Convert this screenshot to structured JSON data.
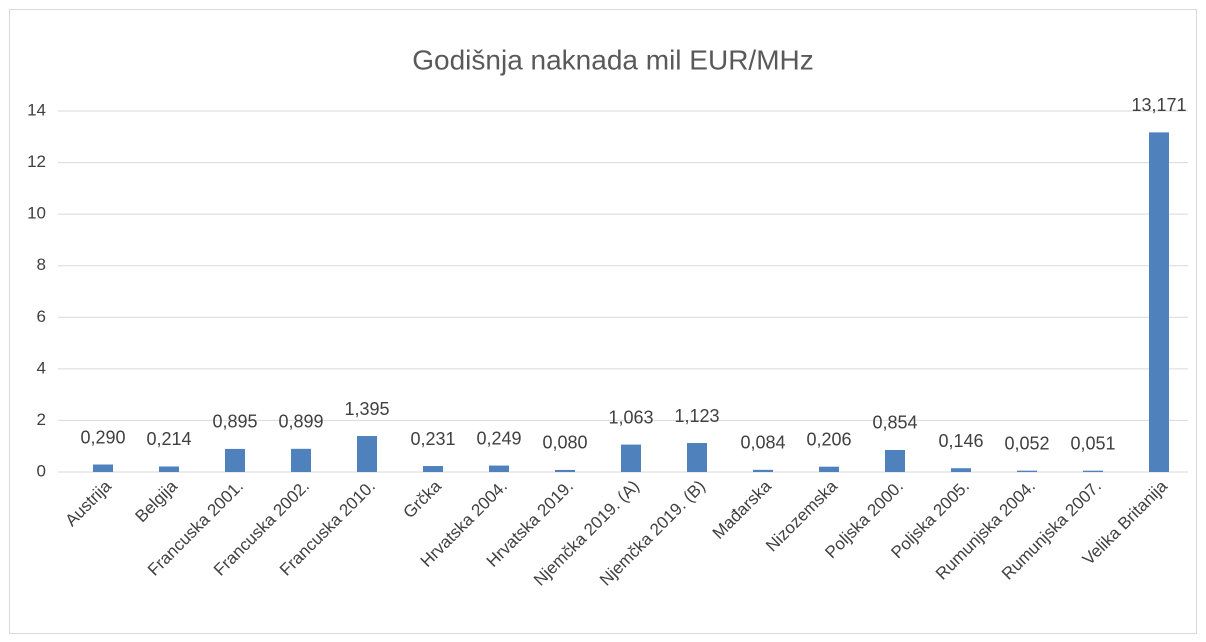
{
  "chart_data": {
    "type": "bar",
    "title": "Godišnja naknada mil EUR/MHz",
    "categories": [
      "Austrija",
      "Belgija",
      "Francuska 2001.",
      "Francuska 2002.",
      "Francuska 2010.",
      "Grčka",
      "Hrvatska 2004.",
      "Hrvatska 2019.",
      "Njemčka 2019. (A)",
      "Njemčka 2019. (B)",
      "Mađarska",
      "Nizozemska",
      "Poljska 2000.",
      "Poljska 2005.",
      "Rumunjska 2004.",
      "Rumunjska 2007.",
      "Velika Britanija"
    ],
    "values": [
      0.29,
      0.214,
      0.895,
      0.899,
      1.395,
      0.231,
      0.249,
      0.08,
      1.063,
      1.123,
      0.084,
      0.206,
      0.854,
      0.146,
      0.052,
      0.051,
      13.171
    ],
    "value_labels": [
      "0,290",
      "0,214",
      "0,895",
      "0,899",
      "1,395",
      "0,231",
      "0,249",
      "0,080",
      "1,063",
      "1,123",
      "0,084",
      "0,206",
      "0,854",
      "0,146",
      "0,052",
      "0,051",
      "13,171"
    ],
    "color": "#4f81bd",
    "ylim": [
      0,
      14
    ],
    "yticks": [
      0,
      2,
      4,
      6,
      8,
      10,
      12,
      14
    ],
    "grid": true
  }
}
